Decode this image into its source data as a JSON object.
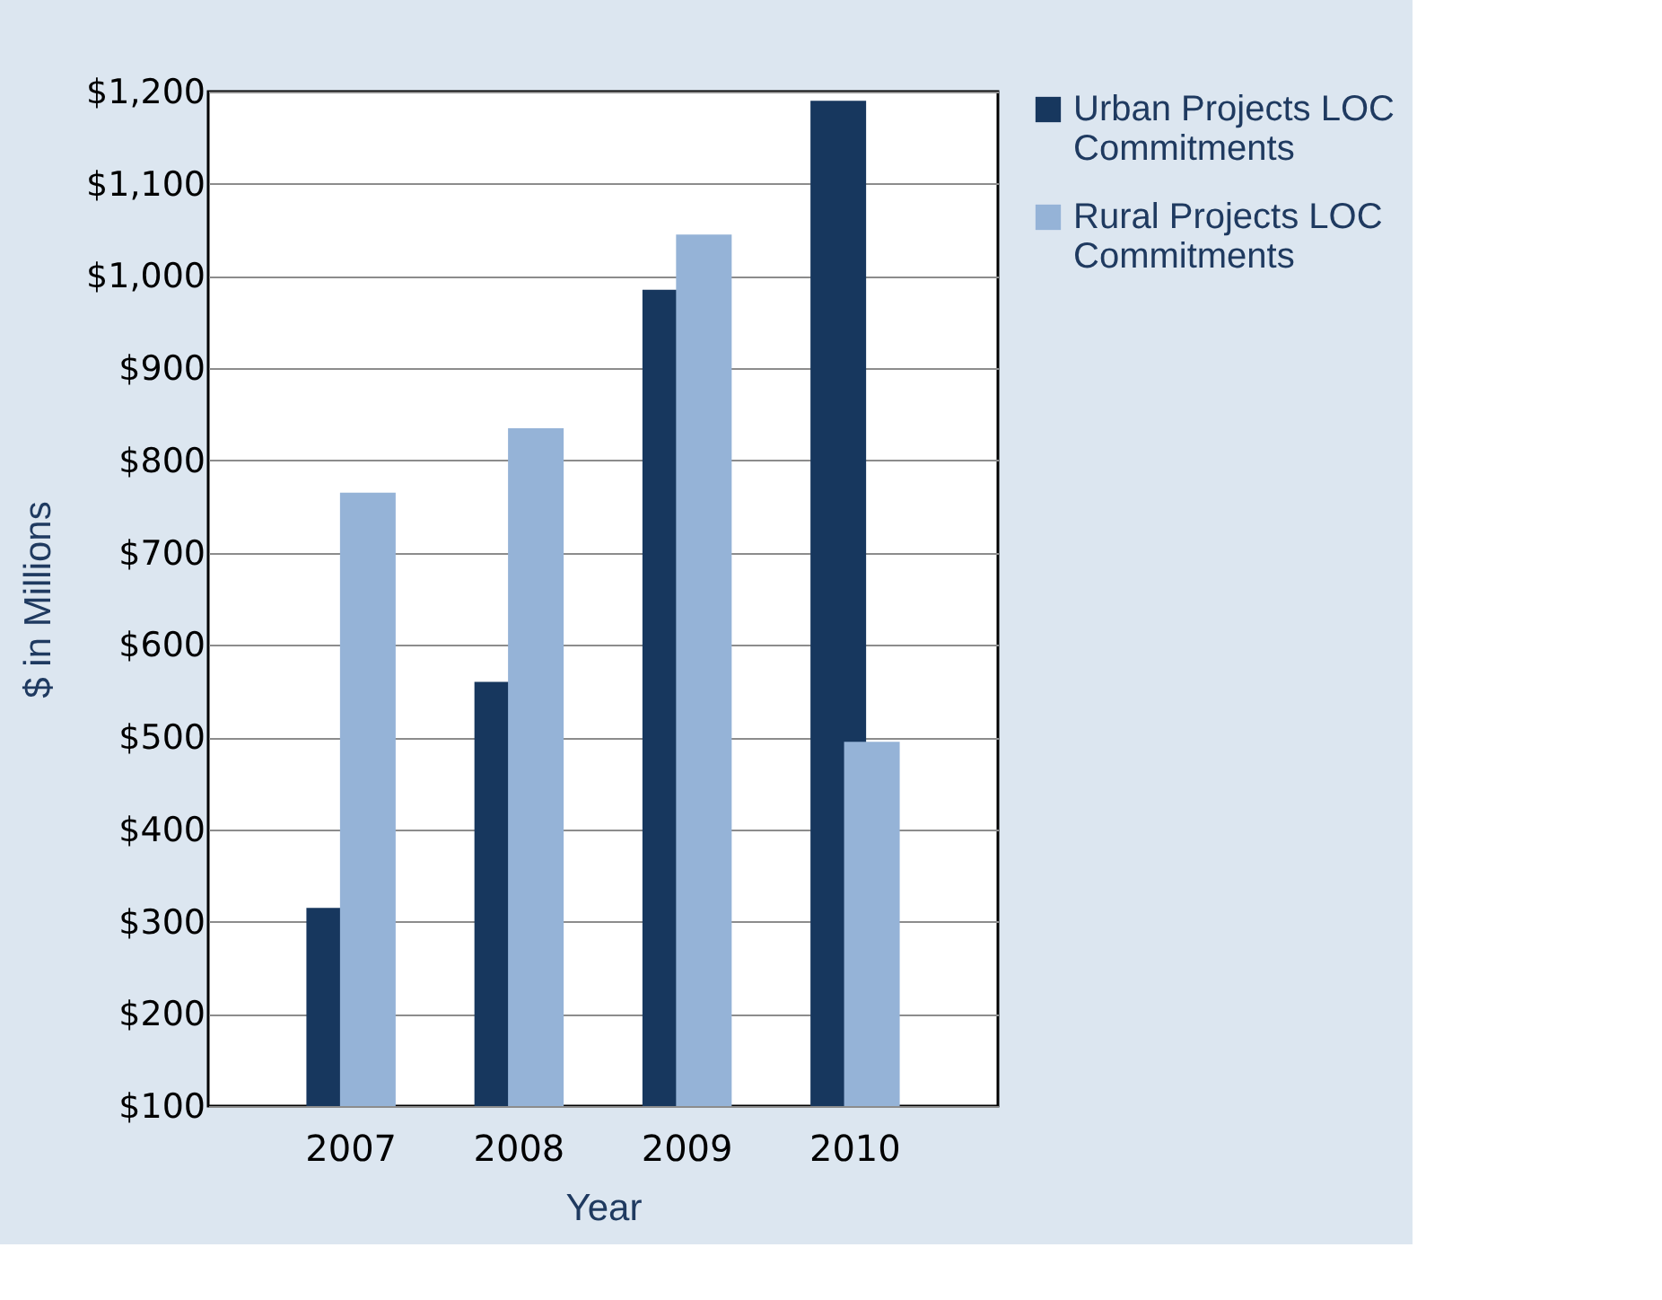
{
  "chart_data": {
    "type": "bar",
    "xlabel": "Year",
    "ylabel": "$ in Millions",
    "categories": [
      "2007",
      "2008",
      "2009",
      "2010"
    ],
    "series": [
      {
        "name": "Urban Projects LOC Commitments",
        "color": "#17375e",
        "values": [
          315,
          560,
          985,
          1190
        ]
      },
      {
        "name": "Rural Projects LOC Commitments",
        "color": "#95b3d7",
        "values": [
          765,
          835,
          1045,
          495
        ]
      }
    ],
    "ylim": [
      100,
      1200
    ],
    "yticks": [
      {
        "value": 100,
        "label": "$100"
      },
      {
        "value": 200,
        "label": "$200"
      },
      {
        "value": 300,
        "label": "$300"
      },
      {
        "value": 400,
        "label": "$400"
      },
      {
        "value": 500,
        "label": "$500"
      },
      {
        "value": 600,
        "label": "$600"
      },
      {
        "value": 700,
        "label": "$700"
      },
      {
        "value": 800,
        "label": "$800"
      },
      {
        "value": 900,
        "label": "$900"
      },
      {
        "value": 1000,
        "label": "$1,000"
      },
      {
        "value": 1100,
        "label": "$1,100"
      },
      {
        "value": 1200,
        "label": "$1,200"
      }
    ],
    "grid": "y",
    "legend": "right"
  }
}
